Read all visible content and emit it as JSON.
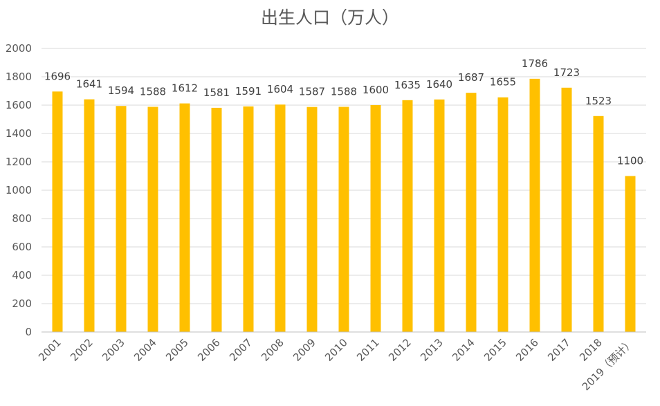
{
  "chart_data": {
    "type": "bar",
    "title": "出生人口（万人）",
    "xlabel": "",
    "ylabel": "",
    "categories": [
      "2001",
      "2002",
      "2003",
      "2004",
      "2005",
      "2006",
      "2007",
      "2008",
      "2009",
      "2010",
      "2011",
      "2012",
      "2013",
      "2014",
      "2015",
      "2016",
      "2017",
      "2018",
      "2019（预计）"
    ],
    "values": [
      1696,
      1641,
      1594,
      1588,
      1612,
      1581,
      1591,
      1604,
      1587,
      1588,
      1600,
      1635,
      1640,
      1687,
      1655,
      1786,
      1723,
      1523,
      1100
    ],
    "value_labels": [
      "1696",
      "1641",
      "1594",
      "1588",
      "1612",
      "1581",
      "1591",
      "1604",
      "1587",
      "1588",
      "1600",
      "1635",
      "1640",
      "1687",
      "1655",
      "1786",
      "1723",
      "1523",
      "1100"
    ],
    "ylim": [
      0,
      2000
    ],
    "yticks": [
      0,
      200,
      400,
      600,
      800,
      1000,
      1200,
      1400,
      1600,
      1800,
      2000
    ],
    "ytick_labels": [
      "0",
      "200",
      "400",
      "600",
      "800",
      "1000",
      "1200",
      "1400",
      "1600",
      "1800",
      "2000"
    ],
    "grid": true,
    "legend": "none",
    "bar_color": "#FFC000"
  }
}
